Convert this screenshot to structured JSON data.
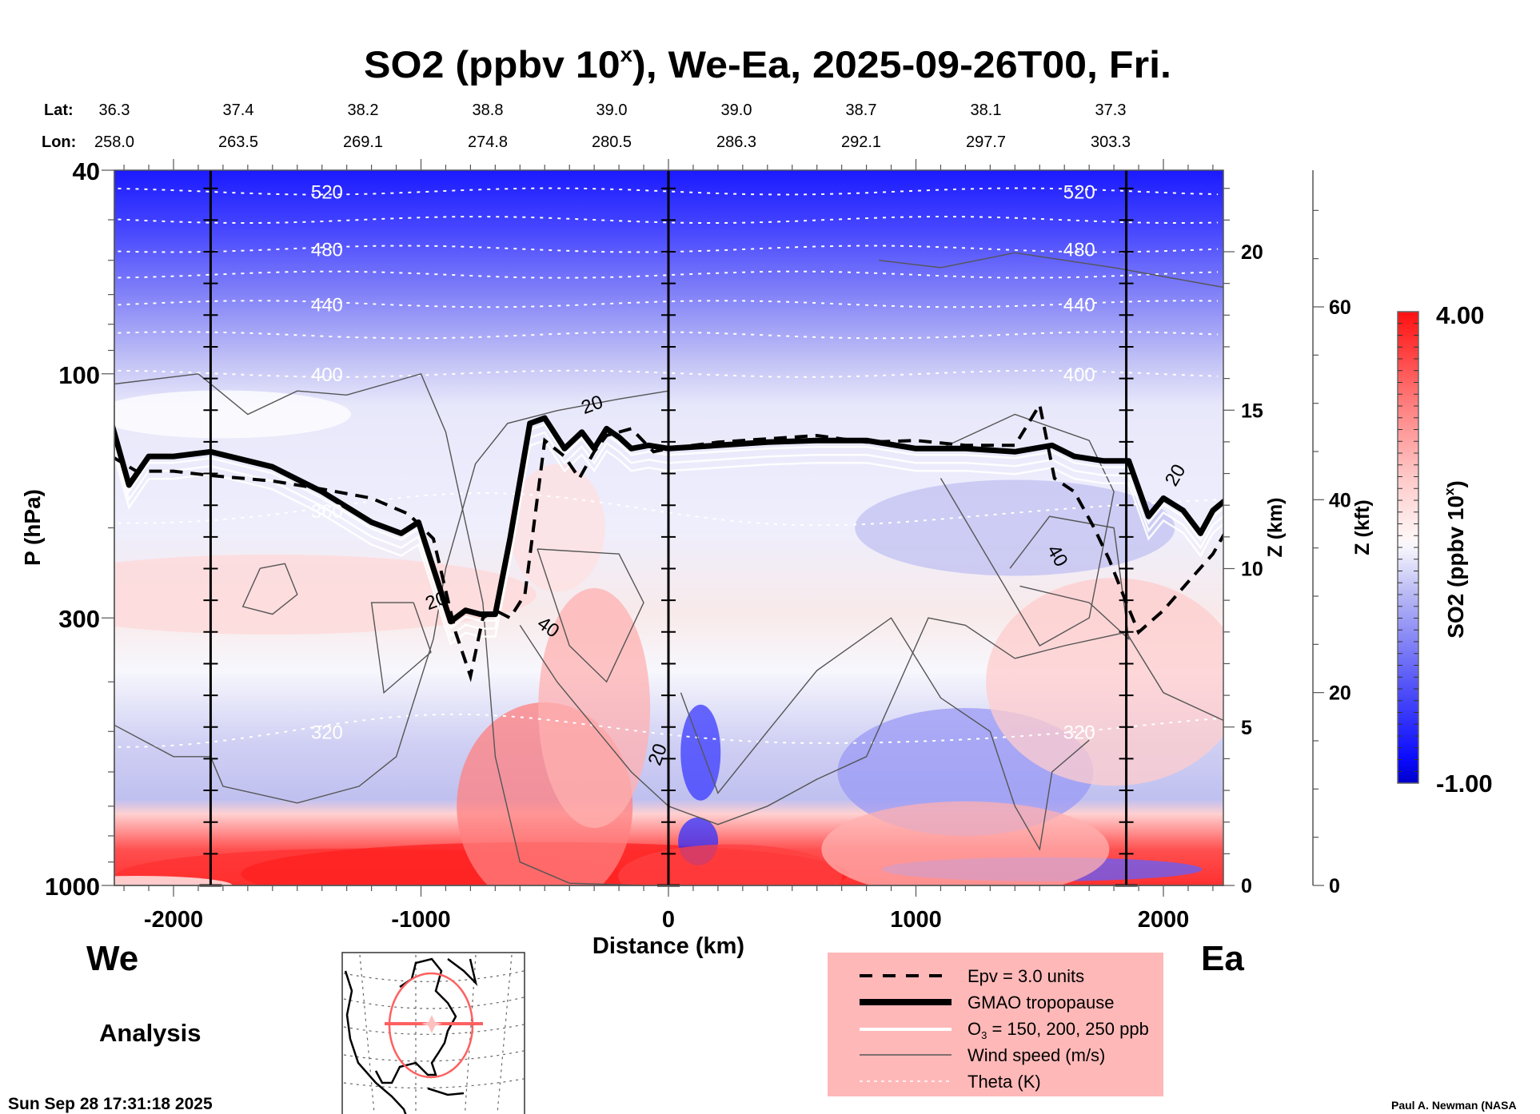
{
  "chart_data": {
    "type": "heatmap",
    "title": "SO2 (ppbv 10",
    "title_sup": "x",
    "title_rest": "), We-Ea, 2025-09-26T00, Fri.",
    "xlabel": "Distance (km)",
    "ylabel": "P (hPa)",
    "ylabel_right_km": "Z (km)",
    "ylabel_right_kft": "Z (kft)",
    "xlim": [
      -2260,
      2260
    ],
    "ylim_hpa": [
      1000,
      40
    ],
    "y_scale": "log",
    "x_ticks": [
      -2000,
      -1000,
      0,
      1000,
      2000
    ],
    "x_tick_labels": [
      "-2000",
      "-1000",
      "0",
      "1000",
      "2000"
    ],
    "y_ticks_hpa": [
      40,
      100,
      300,
      1000
    ],
    "y_tick_labels_hpa": [
      "40",
      "100",
      "300",
      "1000"
    ],
    "z_km_ticks": [
      0,
      5,
      10,
      15,
      20
    ],
    "z_kft_ticks": [
      0,
      20,
      40,
      60
    ],
    "location_ticks": {
      "lat_label": "Lat:",
      "lon_label": "Lon:",
      "distances_km": [
        -2250,
        -1840,
        -1430,
        -1020,
        -610,
        -200,
        210,
        620,
        1030
      ],
      "lat": [
        "36.3",
        "37.4",
        "38.2",
        "38.8",
        "39.0",
        "39.0",
        "38.7",
        "38.1",
        "37.3"
      ],
      "lon": [
        "258.0",
        "263.5",
        "269.1",
        "274.8",
        "280.5",
        "286.3",
        "292.1",
        "297.7",
        "303.3"
      ]
    },
    "vertical_marker_lines_km": [
      -1850,
      0,
      1850
    ],
    "colorbar": {
      "label": "SO2 (ppbv 10",
      "label_sup": "x",
      "label_end": ")",
      "min": -1.0,
      "max": 4.0,
      "min_label": "-1.00",
      "max_label": "4.00",
      "levels": 40,
      "low_color": "#0000d0",
      "mid_color": "#ffffff",
      "high_color": "#ff0000"
    },
    "theta_contours_K": [
      {
        "value": 520,
        "label": "520",
        "p_hpa": 44
      },
      {
        "value": 500,
        "label": "",
        "p_hpa": 50
      },
      {
        "value": 480,
        "label": "480",
        "p_hpa": 57
      },
      {
        "value": 460,
        "label": "",
        "p_hpa": 64
      },
      {
        "value": 440,
        "label": "440",
        "p_hpa": 73
      },
      {
        "value": 420,
        "label": "",
        "p_hpa": 84
      },
      {
        "value": 400,
        "label": "400",
        "p_hpa": 100
      },
      {
        "value": 360,
        "label": "360",
        "p_hpa": 185
      },
      {
        "value": 320,
        "label": "320",
        "p_hpa": 500
      }
    ],
    "tropopause_gmao_hpa": {
      "x_km": [
        -2250,
        -2180,
        -2100,
        -2000,
        -1850,
        -1600,
        -1400,
        -1200,
        -1080,
        -1010,
        -950,
        -880,
        -820,
        -760,
        -700,
        -640,
        -560,
        -500,
        -420,
        -350,
        -300,
        -250,
        -200,
        -150,
        -80,
        0,
        200,
        400,
        600,
        800,
        1000,
        1200,
        1400,
        1550,
        1640,
        1760,
        1860,
        1940,
        2000,
        2080,
        2150,
        2200,
        2260
      ],
      "p_hpa": [
        125,
        165,
        145,
        145,
        142,
        152,
        170,
        195,
        205,
        195,
        240,
        305,
        290,
        295,
        295,
        210,
        125,
        122,
        140,
        130,
        140,
        128,
        133,
        140,
        138,
        140,
        138,
        136,
        135,
        135,
        140,
        140,
        142,
        138,
        145,
        148,
        148,
        190,
        175,
        185,
        205,
        185,
        175
      ]
    },
    "epv_3pvu_hpa": {
      "x_km": [
        -2250,
        -2150,
        -2000,
        -1850,
        -1600,
        -1400,
        -1200,
        -1050,
        -950,
        -860,
        -800,
        -750,
        -700,
        -640,
        -580,
        -500,
        -420,
        -360,
        -300,
        -250,
        -150,
        -60,
        0,
        200,
        400,
        600,
        800,
        1000,
        1200,
        1400,
        1500,
        1560,
        1640,
        1720,
        1780,
        1850,
        1900,
        2000,
        2100,
        2200,
        2260
      ],
      "p_hpa": [
        145,
        155,
        155,
        158,
        162,
        168,
        175,
        188,
        210,
        320,
        390,
        300,
        290,
        300,
        270,
        135,
        145,
        160,
        142,
        132,
        128,
        142,
        140,
        136,
        134,
        132,
        136,
        135,
        138,
        138,
        115,
        160,
        170,
        200,
        230,
        280,
        320,
        290,
        255,
        225,
        200
      ]
    },
    "legend": [
      {
        "label": "Epv = 3.0 units",
        "style": "dashed-thick-black"
      },
      {
        "label": "GMAO tropopause",
        "style": "solid-heavy-black"
      },
      {
        "label": "O3 = 150, 200, 250 ppb",
        "style": "solid-white"
      },
      {
        "label": "Wind speed (m/s)",
        "style": "thin-gray"
      },
      {
        "label": "Theta (K)",
        "style": "dotted-white"
      }
    ],
    "wind_contour_labels": [
      {
        "text": "20",
        "x_km": -930,
        "p_hpa": 285,
        "rot": -20
      },
      {
        "text": "40",
        "x_km": -500,
        "p_hpa": 320,
        "rot": 35
      },
      {
        "text": "20",
        "x_km": -300,
        "p_hpa": 118,
        "rot": -20
      },
      {
        "text": "20",
        "x_km": -20,
        "p_hpa": 560,
        "rot": -70
      },
      {
        "text": "40",
        "x_km": 1550,
        "p_hpa": 230,
        "rot": 60
      },
      {
        "text": "20",
        "x_km": 2070,
        "p_hpa": 160,
        "rot": -60
      }
    ]
  },
  "labels": {
    "west": "We",
    "east": "Ea",
    "analysis": "Analysis",
    "timestamp": "Sun Sep 28 17:31:18 2025",
    "credit": "Paul A. Newman (NASA"
  },
  "legend_text": {
    "epv": "Epv = 3.0 units",
    "tropopause": "GMAO tropopause",
    "o3_prefix": "O",
    "o3_sub": "3",
    "o3_rest": " = 150, 200, 250 ppb",
    "wind": "Wind speed (m/s)",
    "theta": "Theta (K)"
  },
  "colors": {
    "legend_bg": "#ffb8b8",
    "map_circle": "#ff6060"
  }
}
